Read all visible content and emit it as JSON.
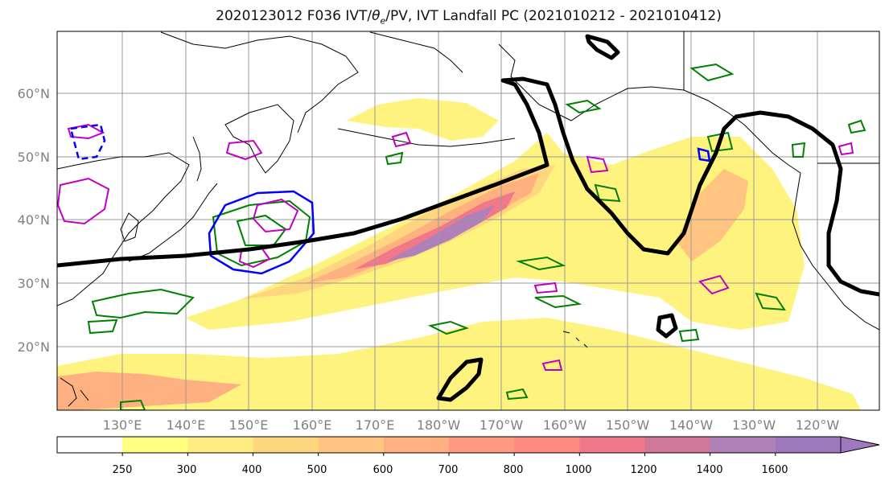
{
  "title": "2020123012 F036 IVT/θe/PV, IVT Landfall PC (2021010212 - 2021010412)",
  "title_parts": {
    "prefix": "2020123012 F036 IVT/",
    "theta": "θ",
    "theta_sub": "e",
    "suffix": "/PV, IVT Landfall PC (2021010212 - 2021010412)"
  },
  "map": {
    "lat_labels": [
      "60°N",
      "50°N",
      "40°N",
      "30°N",
      "20°N"
    ],
    "lon_labels": [
      "130°E",
      "140°E",
      "150°E",
      "160°E",
      "170°E",
      "180°W",
      "170°W",
      "160°W",
      "150°W",
      "140°W",
      "130°W",
      "120°W"
    ],
    "tick_color": "#808080",
    "contours": {
      "landfall_pc": "#000000",
      "pv_green": "#008000",
      "pv_magenta": "#c000c0",
      "pv_blue": "#0000ff"
    }
  },
  "colorbar": {
    "tick_labels": [
      "250",
      "300",
      "400",
      "500",
      "600",
      "700",
      "800",
      "1000",
      "1200",
      "1400",
      "1600"
    ],
    "colors": [
      "#ffffff",
      "#ffff80",
      "#ffec80",
      "#ffd680",
      "#ffc580",
      "#ffb080",
      "#ff9a80",
      "#ff8a80",
      "#f07888",
      "#d07898",
      "#b080b8",
      "#a078c0"
    ]
  }
}
